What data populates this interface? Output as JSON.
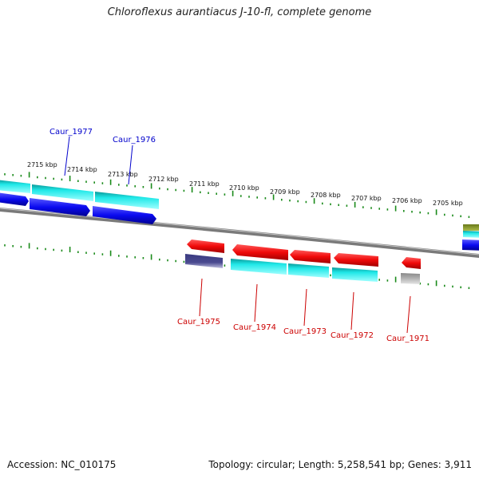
{
  "title": "Chloroflexus aurantiacus J-10-fl, complete genome",
  "footer": {
    "accession": "Accession: NC_010175",
    "summary": "Topology: circular; Length: 5,258,541 bp; Genes: 3,911"
  },
  "colors": {
    "background": "#ffffff",
    "backbone": "#808080",
    "tick": "#1a8a1a",
    "forward_label": "#0000cc",
    "reverse_label": "#cc0000",
    "gene_blue": "#0a0af0",
    "gene_cyan": "#20e8e8",
    "gene_red": "#f00a0a",
    "gene_navy": "#4a4a90",
    "gene_gray": "#b4b4b4",
    "gene_olive": "#8a9a2a"
  },
  "scale": {
    "unit": "kbp",
    "labels": [
      "2715 kbp",
      "2714 kbp",
      "2713 kbp",
      "2712 kbp",
      "2711 kbp",
      "2710 kbp",
      "2709 kbp",
      "2708 kbp",
      "2707 kbp",
      "2706 kbp",
      "2705 kbp"
    ]
  },
  "forward_genes": [
    {
      "label": "Caur_1977",
      "color": "gene_cyan",
      "track": "outer"
    },
    {
      "label": "Caur_1976",
      "color": "gene_cyan",
      "track": "outer"
    }
  ],
  "reverse_genes": [
    {
      "label": "Caur_1975",
      "color": "gene_navy"
    },
    {
      "label": "Caur_1974",
      "color": "gene_cyan"
    },
    {
      "label": "Caur_1973",
      "color": "gene_cyan"
    },
    {
      "label": "Caur_1972",
      "color": "gene_cyan"
    },
    {
      "label": "Caur_1971",
      "color": "gene_gray"
    }
  ]
}
